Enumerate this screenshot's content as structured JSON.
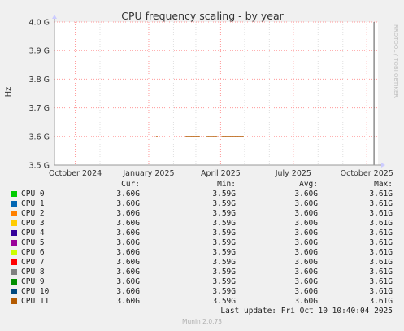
{
  "chart_data": {
    "type": "line",
    "title": "CPU frequency scaling - by year",
    "ylabel": "Hz",
    "xlabel": "",
    "ylim": [
      3.5,
      4.0
    ],
    "yticks": [
      {
        "value": 3.5,
        "label": "3.5 G"
      },
      {
        "value": 3.6,
        "label": "3.6 G"
      },
      {
        "value": 3.7,
        "label": "3.7 G"
      },
      {
        "value": 3.8,
        "label": "3.8 G"
      },
      {
        "value": 3.9,
        "label": "3.9 G"
      },
      {
        "value": 4.0,
        "label": "4.0 G"
      }
    ],
    "xlim": [
      "2024-09-05",
      "2025-10-15"
    ],
    "xticks": [
      {
        "date": "2024-10-01",
        "label": "October 2024"
      },
      {
        "date": "2025-01-01",
        "label": "January 2025"
      },
      {
        "date": "2025-04-01",
        "label": "April 2025"
      },
      {
        "date": "2025-07-01",
        "label": "July 2025"
      },
      {
        "date": "2025-10-01",
        "label": "October 2025"
      }
    ],
    "minor_grid_dates": [
      "2024-11-01",
      "2024-12-01",
      "2025-02-01",
      "2025-03-01",
      "2025-05-01",
      "2025-06-01",
      "2025-08-01",
      "2025-09-01"
    ],
    "segments": [
      {
        "start": "2025-01-10",
        "end": "2025-01-12",
        "value": 3.6
      },
      {
        "start": "2025-02-16",
        "end": "2025-03-06",
        "value": 3.6
      },
      {
        "start": "2025-03-14",
        "end": "2025-03-28",
        "value": 3.6
      },
      {
        "start": "2025-04-02",
        "end": "2025-04-30",
        "value": 3.6
      }
    ],
    "spike": {
      "date": "2025-10-10",
      "from": 3.5,
      "to": 4.0
    },
    "grid": true,
    "watermark": "RRDTOOL / TOBI OETIKER",
    "legend": {
      "headers": {
        "cur": "Cur:",
        "min": "Min:",
        "avg": "Avg:",
        "max": "Max:"
      },
      "series": [
        {
          "name": "CPU 0",
          "color": "#00cc00",
          "cur": "3.60G",
          "min": "3.59G",
          "avg": "3.60G",
          "max": "3.61G"
        },
        {
          "name": "CPU 1",
          "color": "#0066b3",
          "cur": "3.60G",
          "min": "3.59G",
          "avg": "3.60G",
          "max": "3.61G"
        },
        {
          "name": "CPU 2",
          "color": "#ff8000",
          "cur": "3.60G",
          "min": "3.59G",
          "avg": "3.60G",
          "max": "3.61G"
        },
        {
          "name": "CPU 3",
          "color": "#ffcc00",
          "cur": "3.60G",
          "min": "3.59G",
          "avg": "3.60G",
          "max": "3.61G"
        },
        {
          "name": "CPU 4",
          "color": "#330099",
          "cur": "3.60G",
          "min": "3.59G",
          "avg": "3.60G",
          "max": "3.61G"
        },
        {
          "name": "CPU 5",
          "color": "#990099",
          "cur": "3.60G",
          "min": "3.59G",
          "avg": "3.60G",
          "max": "3.61G"
        },
        {
          "name": "CPU 6",
          "color": "#ccff00",
          "cur": "3.60G",
          "min": "3.59G",
          "avg": "3.60G",
          "max": "3.61G"
        },
        {
          "name": "CPU 7",
          "color": "#ff0000",
          "cur": "3.60G",
          "min": "3.59G",
          "avg": "3.60G",
          "max": "3.61G"
        },
        {
          "name": "CPU 8",
          "color": "#808080",
          "cur": "3.60G",
          "min": "3.59G",
          "avg": "3.60G",
          "max": "3.61G"
        },
        {
          "name": "CPU 9",
          "color": "#008f00",
          "cur": "3.60G",
          "min": "3.59G",
          "avg": "3.60G",
          "max": "3.61G"
        },
        {
          "name": "CPU 10",
          "color": "#00487d",
          "cur": "3.60G",
          "min": "3.59G",
          "avg": "3.60G",
          "max": "3.61G"
        },
        {
          "name": "CPU 11",
          "color": "#b35a00",
          "cur": "3.60G",
          "min": "3.59G",
          "avg": "3.60G",
          "max": "3.61G"
        }
      ]
    }
  },
  "last_update": "Last update:  Fri Oct 10 10:40:04 2025",
  "footer": "Munin 2.0.73"
}
